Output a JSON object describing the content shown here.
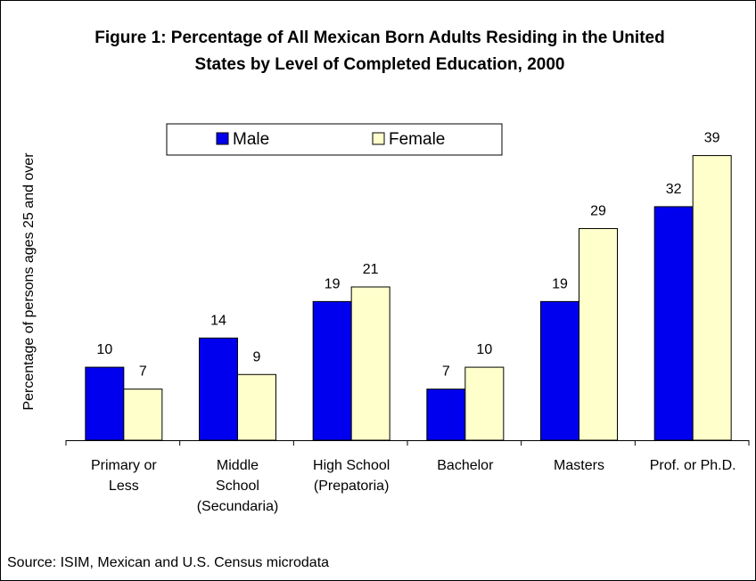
{
  "chart_data": {
    "type": "bar",
    "title_lines": [
      "Figure 1: Percentage of All Mexican Born Adults Residing in the United",
      "States by Level of Completed Education, 2000"
    ],
    "ylabel": "Percentage of persons ages 25 and over",
    "xlabel": "",
    "categories": [
      [
        "Primary or",
        "Less"
      ],
      [
        "Middle",
        "School",
        "(Secundaria)"
      ],
      [
        "High School",
        "(Prepatoria)"
      ],
      [
        "Bachelor"
      ],
      [
        "Masters"
      ],
      [
        "Prof. or Ph.D."
      ]
    ],
    "series": [
      {
        "name": "Male",
        "color": "#0000ee",
        "values": [
          10,
          14,
          19,
          7,
          19,
          32
        ]
      },
      {
        "name": "Female",
        "color": "#ffffcc",
        "values": [
          7,
          9,
          21,
          10,
          29,
          39
        ]
      }
    ],
    "ylim": [
      0,
      42
    ],
    "grid": false,
    "legend_position": "top-center",
    "data_labels": true,
    "source": "Source: ISIM, Mexican and U.S. Census microdata"
  }
}
